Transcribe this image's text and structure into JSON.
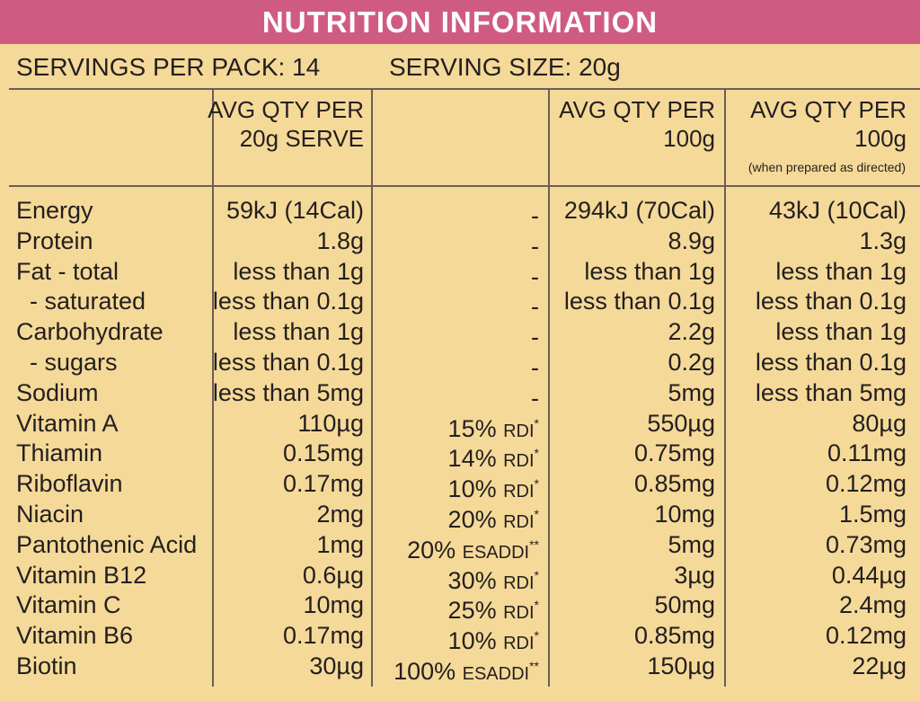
{
  "title": "NUTRITION INFORMATION",
  "servings_per_pack": "SERVINGS PER PACK: 14",
  "serving_size": "SERVING SIZE:  20g",
  "headers": {
    "col1_line1": "AVG QTY PER",
    "col1_line2": "20g SERVE",
    "col3_line1": "AVG QTY PER",
    "col3_line2": "100g",
    "col4_line1": "AVG QTY PER",
    "col4_line2": "100g",
    "col4_note": "(when prepared as directed)"
  },
  "rows": [
    {
      "name": "Energy",
      "serve": "59kJ (14Cal)",
      "pct_num": "-",
      "pct_unit": "",
      "pct_mark": "",
      "per100": "294kJ (70Cal)",
      "prepared": "43kJ (10Cal)"
    },
    {
      "name": "Protein",
      "serve": "1.8g",
      "pct_num": "-",
      "pct_unit": "",
      "pct_mark": "",
      "per100": "8.9g",
      "prepared": "1.3g"
    },
    {
      "name": "Fat - total",
      "serve": "less than 1g",
      "pct_num": "-",
      "pct_unit": "",
      "pct_mark": "",
      "per100": "less than 1g",
      "prepared": "less than 1g"
    },
    {
      "name": "  - saturated",
      "serve": "less than 0.1g",
      "pct_num": "-",
      "pct_unit": "",
      "pct_mark": "",
      "per100": "less than 0.1g",
      "prepared": "less than 0.1g"
    },
    {
      "name": "Carbohydrate",
      "serve": "less than 1g",
      "pct_num": "-",
      "pct_unit": "",
      "pct_mark": "",
      "per100": "2.2g",
      "prepared": "less than 1g"
    },
    {
      "name": "  - sugars",
      "serve": "less than 0.1g",
      "pct_num": "-",
      "pct_unit": "",
      "pct_mark": "",
      "per100": "0.2g",
      "prepared": "less than 0.1g"
    },
    {
      "name": "Sodium",
      "serve": "less than 5mg",
      "pct_num": "-",
      "pct_unit": "",
      "pct_mark": "",
      "per100": "5mg",
      "prepared": "less than 5mg"
    },
    {
      "name": "Vitamin A",
      "serve": "110µg",
      "pct_num": "15% ",
      "pct_unit": "RDI",
      "pct_mark": "*",
      "per100": "550µg",
      "prepared": "80µg"
    },
    {
      "name": "Thiamin",
      "serve": "0.15mg",
      "pct_num": "14% ",
      "pct_unit": "RDI",
      "pct_mark": "*",
      "per100": "0.75mg",
      "prepared": "0.11mg"
    },
    {
      "name": "Riboflavin",
      "serve": "0.17mg",
      "pct_num": "10% ",
      "pct_unit": "RDI",
      "pct_mark": "*",
      "per100": "0.85mg",
      "prepared": "0.12mg"
    },
    {
      "name": "Niacin",
      "serve": "2mg",
      "pct_num": "20% ",
      "pct_unit": "RDI",
      "pct_mark": "*",
      "per100": "10mg",
      "prepared": "1.5mg"
    },
    {
      "name": "Pantothenic Acid",
      "serve": "1mg",
      "pct_num": "20% ",
      "pct_unit": "ESADDI",
      "pct_mark": "**",
      "per100": "5mg",
      "prepared": "0.73mg"
    },
    {
      "name": "Vitamin B12",
      "serve": "0.6µg",
      "pct_num": "30% ",
      "pct_unit": "RDI",
      "pct_mark": "*",
      "per100": "3µg",
      "prepared": "0.44µg"
    },
    {
      "name": "Vitamin C",
      "serve": "10mg",
      "pct_num": "25% ",
      "pct_unit": "RDI",
      "pct_mark": "*",
      "per100": "50mg",
      "prepared": "2.4mg"
    },
    {
      "name": "Vitamin B6",
      "serve": "0.17mg",
      "pct_num": "10% ",
      "pct_unit": "RDI",
      "pct_mark": "*",
      "per100": "0.85mg",
      "prepared": "0.12mg"
    },
    {
      "name": "Biotin",
      "serve": "30µg",
      "pct_num": "100% ",
      "pct_unit": "ESADDI",
      "pct_mark": "**",
      "per100": "150µg",
      "prepared": "22µg"
    }
  ],
  "colors": {
    "title_bar": "#cf5b83",
    "background": "#f5d998",
    "text": "#231f20",
    "rules": "#6b5f55"
  }
}
